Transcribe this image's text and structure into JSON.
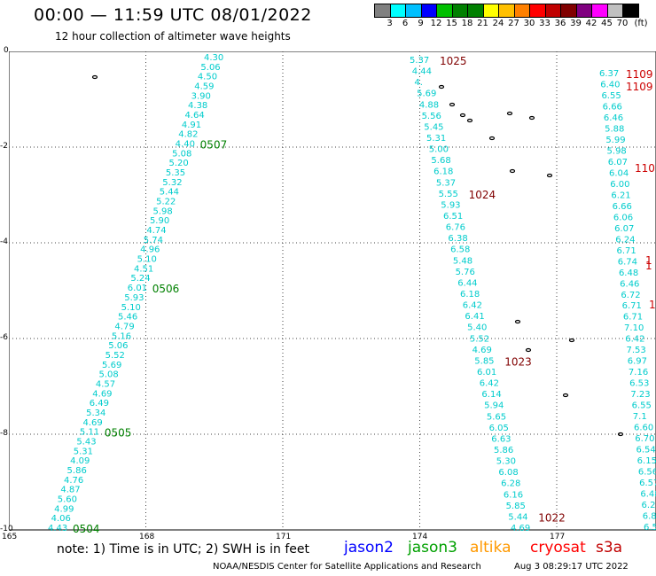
{
  "header": {
    "title": "00:00 — 11:59 UTC 08/01/2022",
    "subtitle": "12 hour collection of altimeter wave heights"
  },
  "legend": {
    "unit": "(ft)",
    "colors": [
      "#808080",
      "#00ffff",
      "#00c0ff",
      "#0000ff",
      "#00c000",
      "#008000",
      "#008000",
      "#ffff00",
      "#ffc000",
      "#ff8000",
      "#ff0000",
      "#c00000",
      "#800000",
      "#800080",
      "#ff00ff",
      "#c0c0c0",
      "#000000"
    ],
    "labels": [
      "3",
      "6",
      "9",
      "12",
      "15",
      "18",
      "21",
      "24",
      "27",
      "30",
      "33",
      "36",
      "39",
      "42",
      "45",
      "70"
    ]
  },
  "axes": {
    "x_ticks": [
      "165",
      "168",
      "171",
      "174",
      "177"
    ],
    "y_ticks": [
      "0",
      "-2",
      "-4",
      "-6",
      "-8",
      "-10"
    ]
  },
  "tracks": {
    "track1": {
      "color": "#00cccc",
      "values": [
        "4.30",
        "5.06",
        "4.50",
        "4.59",
        "3.90",
        "4.38",
        "4.64",
        "4.91",
        "4.82",
        "4.40",
        "5.08",
        "5.20",
        "5.35",
        "5.32",
        "5.44",
        "5.22",
        "5.98",
        "5.90",
        "4.74",
        "5.74",
        "4.96",
        "5.10",
        "4.51",
        "5.24",
        "6.01",
        "5.93",
        "5.10",
        "5.46",
        "4.79",
        "5.16",
        "5.06",
        "5.52",
        "5.69",
        "5.08",
        "4.57",
        "4.69",
        "6.49",
        "5.34",
        "4.69",
        "5.11",
        "5.43",
        "5.31",
        "4.09",
        "5.86",
        "4.76",
        "4.87",
        "5.60",
        "4.99",
        "4.06",
        "4.43"
      ],
      "time_labels": [
        {
          "label": "0507",
          "after_index": 9
        },
        {
          "label": "0506",
          "after_index": 24
        },
        {
          "label": "0505",
          "after_index": 39
        },
        {
          "label": "0504",
          "after_index": 49
        }
      ]
    },
    "track2": {
      "color": "#00cccc",
      "values": [
        "5.37",
        "4.44",
        "4.",
        "5.69",
        "4.88",
        "5.56",
        "5.45",
        "5.31",
        "5.00",
        "5.68",
        "6.18",
        "5.37",
        "5.55",
        "5.93",
        "6.51",
        "6.76",
        "6.38",
        "6.58",
        "5.48",
        "5.76",
        "6.44",
        "6.18",
        "6.42",
        "6.41",
        "5.40",
        "5.52",
        "4.69",
        "5.85",
        "6.01",
        "6.42",
        "6.14",
        "5.94",
        "5.65",
        "6.05",
        "6.63",
        "5.86",
        "5.30",
        "6.08",
        "6.28",
        "6.16",
        "5.85",
        "5.44",
        "4.69"
      ],
      "time_labels": [
        {
          "label": "1025",
          "after_index": 0
        },
        {
          "label": "1024",
          "after_index": 12
        },
        {
          "label": "1023",
          "after_index": 27
        },
        {
          "label": "1022",
          "after_index": 41
        }
      ]
    },
    "track3": {
      "color": "#00cccc",
      "values": [
        "6.37",
        "6.40",
        "6.55",
        "6.66",
        "6.46",
        "5.88",
        "5.99",
        "5.98",
        "6.07",
        "6.04",
        "6.00",
        "6.21",
        "6.66",
        "6.06",
        "6.07",
        "6.24",
        "6.71",
        "6.74",
        "6.48",
        "6.46",
        "6.72",
        "6.71",
        "6.71",
        "7.10",
        "6.42",
        "7.53",
        "6.97",
        "7.16",
        "6.53",
        "7.23",
        "6.55",
        "7.1",
        "6.60",
        "6.70",
        "6.54",
        "6.15",
        "6.56",
        "6.57",
        "6.48",
        "6.2",
        "6.8",
        "6.5"
      ],
      "time_labels": [
        {
          "label": "1109",
          "pos": 0
        },
        {
          "label": "1109",
          "pos": 1
        },
        {
          "label": "110",
          "pos": 2
        },
        {
          "label": "1",
          "pos": 3
        },
        {
          "label": "1",
          "pos": 4
        },
        {
          "label": "1",
          "pos": 5
        }
      ]
    }
  },
  "footer": {
    "note": "note:  1) Time is in UTC;  2) SWH is in feet",
    "satellites": [
      {
        "name": "jason2",
        "color": "#0000ff"
      },
      {
        "name": "jason3",
        "color": "#00a000"
      },
      {
        "name": "altika",
        "color": "#ff9900"
      },
      {
        "name": "cryosat",
        "color": "#ff0000"
      },
      {
        "name": "s3a",
        "color": "#c00000"
      }
    ],
    "credit": "NOAA/NESDIS Center for Satellite Applications and Research",
    "generated": "Aug  3 08:29:17 UTC 2022"
  }
}
